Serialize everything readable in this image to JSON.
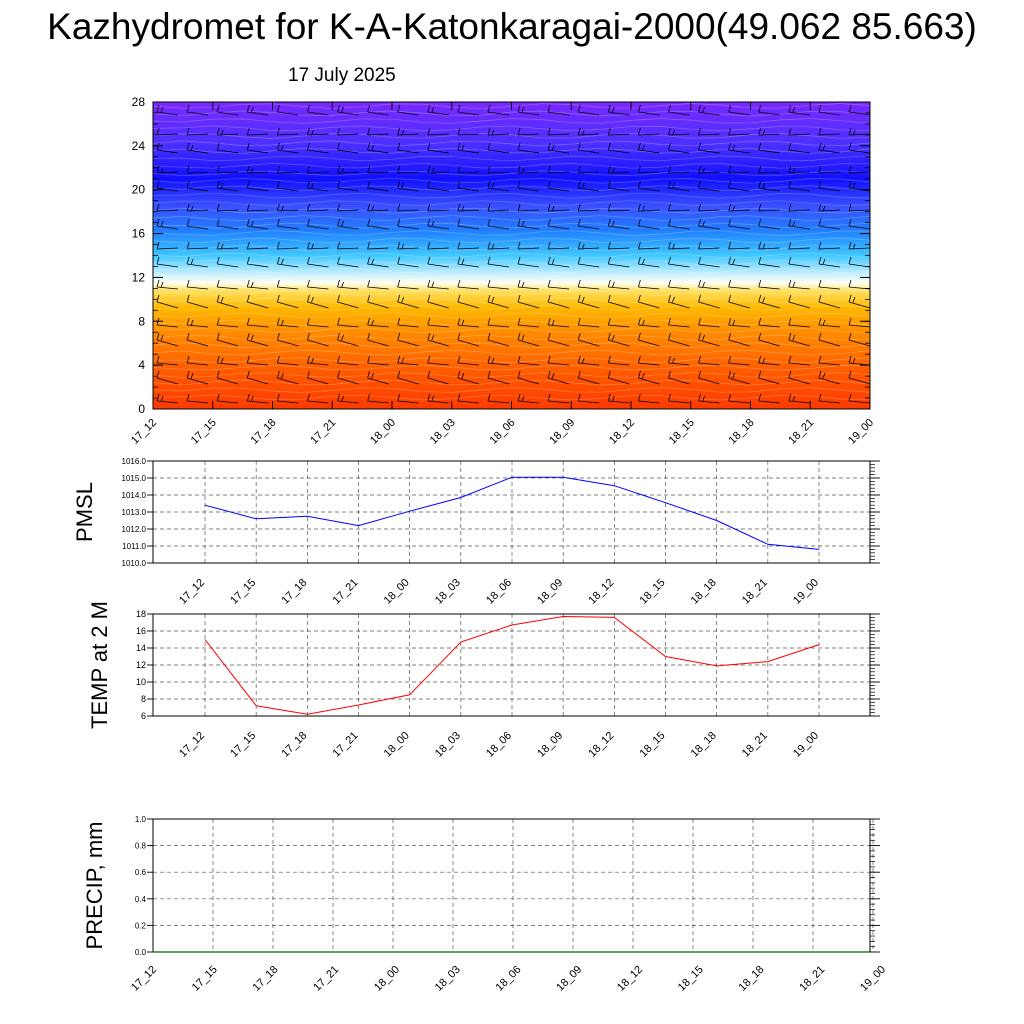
{
  "title": "Kazhydromet for K-A-Katonkaragai-2000(49.062 85.663)",
  "subtitle": "17 July 2025",
  "colors": {
    "pmsl_line": "#0000ff",
    "temp_line": "#ff0000",
    "precip_line": "#006400",
    "contour_low": "#ff3a00",
    "contour_mid": "#ffffe0",
    "contour_high": "#7a1cff"
  },
  "chart_data": [
    {
      "type": "heatmap",
      "name": "vertical-profile",
      "x_ticks": [
        "17_12",
        "17_15",
        "17_18",
        "17_21",
        "18_00",
        "18_03",
        "18_06",
        "18_09",
        "18_12",
        "18_15",
        "18_18",
        "18_21",
        "19_00"
      ],
      "y_ticks": [
        "0",
        "4",
        "8",
        "12",
        "16",
        "20",
        "24",
        "28"
      ],
      "ylim": [
        0,
        28
      ],
      "color_scale": "orange-red at bottom, yellow near 11, light cyan near 13, blue to violet aloft",
      "overlay": "wind barbs"
    },
    {
      "type": "line",
      "name": "pmsl",
      "ylabel": "PMSL",
      "x": [
        "17_12",
        "17_15",
        "17_18",
        "17_21",
        "18_00",
        "18_03",
        "18_06",
        "18_09",
        "18_12",
        "18_15",
        "18_18",
        "18_21",
        "19_00"
      ],
      "values": [
        1013.4,
        1012.6,
        1012.75,
        1012.2,
        1013.05,
        1013.85,
        1015.05,
        1015.05,
        1014.55,
        1013.55,
        1012.5,
        1011.1,
        1010.8
      ],
      "ylim": [
        1010.0,
        1016.0
      ],
      "y_ticks": [
        "1010.0",
        "1011.0",
        "1012.0",
        "1013.0",
        "1014.0",
        "1015.0",
        "1016.0"
      ],
      "grid": true
    },
    {
      "type": "line",
      "name": "temp",
      "ylabel": "TEMP at 2 M",
      "x": [
        "17_12",
        "17_15",
        "17_18",
        "17_21",
        "18_00",
        "18_03",
        "18_06",
        "18_09",
        "18_12",
        "18_15",
        "18_18",
        "18_21",
        "19_00"
      ],
      "values": [
        15.0,
        7.2,
        6.2,
        7.3,
        8.5,
        14.7,
        16.7,
        17.7,
        17.6,
        13.0,
        11.9,
        12.4,
        14.4
      ],
      "ylim": [
        6,
        18
      ],
      "y_ticks": [
        "6",
        "8",
        "10",
        "12",
        "14",
        "16",
        "18"
      ],
      "grid": true
    },
    {
      "type": "line",
      "name": "precip",
      "ylabel": "PRECIP, mm",
      "x": [
        "17_12",
        "17_15",
        "17_18",
        "17_21",
        "18_00",
        "18_03",
        "18_06",
        "18_09",
        "18_12",
        "18_15",
        "18_18",
        "18_21",
        "19_00"
      ],
      "values": [
        0,
        0,
        0,
        0,
        0,
        0,
        0,
        0,
        0,
        0,
        0,
        0,
        0
      ],
      "ylim": [
        0.0,
        1.0
      ],
      "y_ticks": [
        "0.0",
        "0.2",
        "0.4",
        "0.6",
        "0.8",
        "1.0"
      ],
      "grid": true
    }
  ]
}
